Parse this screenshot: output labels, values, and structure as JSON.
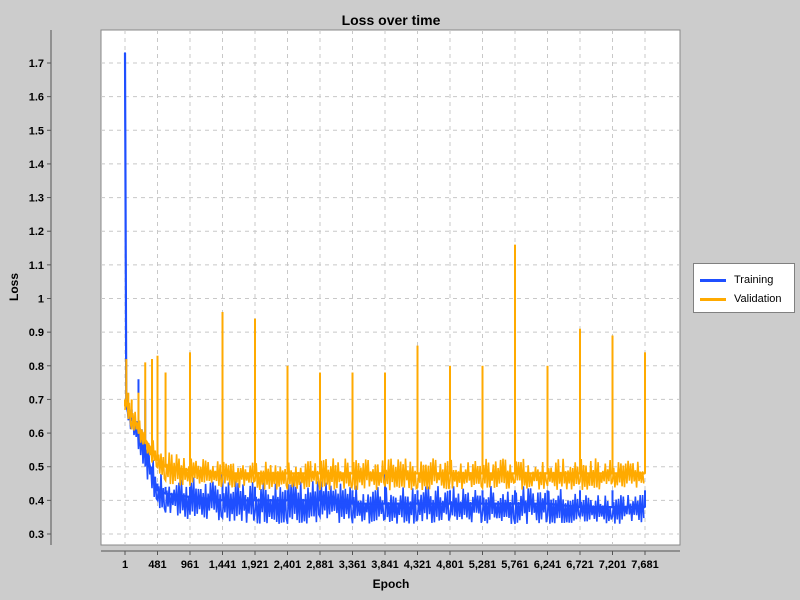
{
  "chart_data": {
    "type": "line",
    "title": "Loss over time",
    "xlabel": "Epoch",
    "ylabel": "Loss",
    "xlim": [
      1,
      7681
    ],
    "ylim": [
      0.3,
      1.75
    ],
    "x_ticks": [
      "1",
      "481",
      "961",
      "1,441",
      "1,921",
      "2,401",
      "2,881",
      "3,361",
      "3,841",
      "4,321",
      "4,801",
      "5,281",
      "5,761",
      "6,241",
      "6,721",
      "7,201",
      "7,681"
    ],
    "y_ticks": [
      "0.3",
      "0.4",
      "0.5",
      "0.6",
      "0.7",
      "0.8",
      "0.9",
      "1",
      "1.1",
      "1.2",
      "1.3",
      "1.4",
      "1.5",
      "1.6",
      "1.7"
    ],
    "grid": true,
    "legend_position": "right",
    "series": [
      {
        "name": "Training",
        "color": "#1f4fff",
        "x": [
          1,
          20,
          50,
          100,
          200,
          300,
          400,
          481,
          600,
          961,
          1441,
          1921,
          2401,
          2881,
          3361,
          3841,
          4321,
          4801,
          5281,
          5761,
          6241,
          6721,
          7201,
          7681
        ],
        "values": [
          1.73,
          0.68,
          0.66,
          0.64,
          0.6,
          0.55,
          0.48,
          0.43,
          0.42,
          0.41,
          0.4,
          0.4,
          0.4,
          0.4,
          0.39,
          0.39,
          0.39,
          0.39,
          0.39,
          0.39,
          0.39,
          0.38,
          0.38,
          0.38
        ],
        "values_low": [
          1.73,
          0.68,
          0.63,
          0.6,
          0.55,
          0.48,
          0.42,
          0.38,
          0.35,
          0.34,
          0.34,
          0.33,
          0.33,
          0.33,
          0.33,
          0.33,
          0.33,
          0.33,
          0.33,
          0.33,
          0.33,
          0.33,
          0.33,
          0.33
        ],
        "values_high": [
          1.73,
          0.7,
          0.68,
          0.67,
          0.76,
          0.7,
          0.5,
          0.45,
          0.44,
          0.44,
          0.74,
          0.44,
          0.43,
          0.43,
          0.43,
          0.7,
          0.43,
          0.43,
          0.43,
          0.43,
          0.43,
          0.43,
          0.43,
          0.43
        ]
      },
      {
        "name": "Validation",
        "color": "#ffaa00",
        "x": [
          1,
          20,
          50,
          100,
          200,
          300,
          400,
          481,
          600,
          961,
          1441,
          1921,
          2401,
          2881,
          3361,
          3841,
          4321,
          4801,
          5281,
          5761,
          6241,
          6721,
          7201,
          7681
        ],
        "values": [
          0.68,
          0.69,
          0.67,
          0.65,
          0.62,
          0.58,
          0.55,
          0.52,
          0.5,
          0.49,
          0.48,
          0.48,
          0.48,
          0.48,
          0.48,
          0.48,
          0.48,
          0.48,
          0.48,
          0.48,
          0.48,
          0.48,
          0.48,
          0.48
        ],
        "values_low": [
          0.66,
          0.67,
          0.64,
          0.61,
          0.58,
          0.55,
          0.51,
          0.47,
          0.45,
          0.44,
          0.44,
          0.43,
          0.43,
          0.43,
          0.43,
          0.43,
          0.43,
          0.43,
          0.43,
          0.43,
          0.43,
          0.43,
          0.43,
          0.43
        ],
        "values_high": [
          0.7,
          0.82,
          0.72,
          0.7,
          0.72,
          0.81,
          0.82,
          0.83,
          0.78,
          0.84,
          0.96,
          0.94,
          0.8,
          0.78,
          0.78,
          0.78,
          0.86,
          0.8,
          0.8,
          1.16,
          0.8,
          0.91,
          0.89,
          0.84
        ]
      }
    ]
  }
}
